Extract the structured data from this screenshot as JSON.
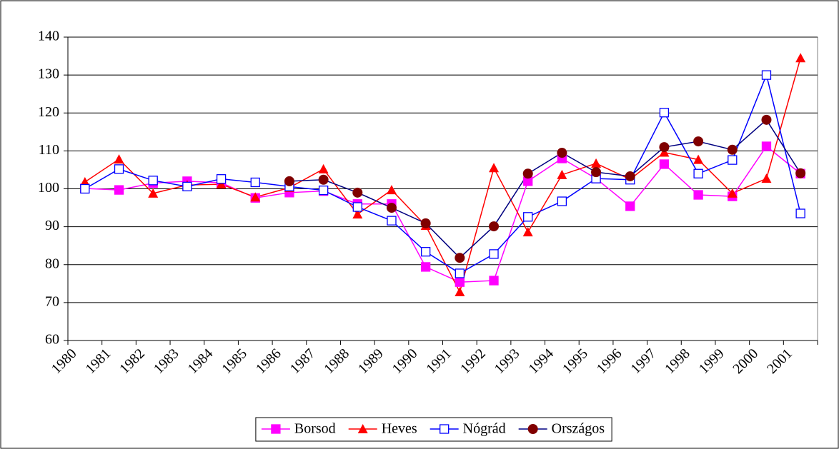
{
  "chart_data": {
    "type": "line",
    "categories": [
      "1980",
      "1981",
      "1982",
      "1983",
      "1984",
      "1985",
      "1986",
      "1987",
      "1988",
      "1989",
      "1990",
      "1991",
      "1992",
      "1993",
      "1994",
      "1995",
      "1996",
      "1997",
      "1998",
      "1999",
      "2000",
      "2001"
    ],
    "series": [
      {
        "name": "Borsod",
        "color": "#ff00ff",
        "marker": "square",
        "marker_color": "#ff00ff",
        "values": [
          100.1,
          99.7,
          101.5,
          102,
          101.6,
          97.6,
          99,
          99.4,
          96,
          96,
          79.4,
          75.4,
          75.8,
          102,
          108,
          102.7,
          95.4,
          106.5,
          98.4,
          98,
          111.2,
          104
        ]
      },
      {
        "name": "Heves",
        "color": "#ff0000",
        "marker": "triangle",
        "marker_color": "#ff0000",
        "values": [
          101.8,
          107.8,
          98.8,
          101,
          101.2,
          97.8,
          100.3,
          105.2,
          93.3,
          99.7,
          90.3,
          72.8,
          105.5,
          88.6,
          103.7,
          106.7,
          102.5,
          109.6,
          107.7,
          98.8,
          102.7,
          134.5
        ]
      },
      {
        "name": "Nógrád",
        "color": "#0000ff",
        "marker": "open-square",
        "marker_color": "#0000ff",
        "values": [
          100,
          105.2,
          102.2,
          100.6,
          102.6,
          101.7,
          100.6,
          99.6,
          95.2,
          91.6,
          83.4,
          77.7,
          82.8,
          92.6,
          96.7,
          102.7,
          102.4,
          120.1,
          104,
          107.6,
          130,
          93.5
        ]
      },
      {
        "name": "Országos",
        "color": "#000080",
        "marker": "circle",
        "marker_color": "#800000",
        "values": [
          null,
          null,
          null,
          null,
          null,
          null,
          102,
          102.4,
          99,
          95,
          90.9,
          81.8,
          90.1,
          104,
          109.5,
          104.4,
          103.3,
          111,
          112.5,
          110.3,
          118.2,
          104.1
        ]
      }
    ],
    "ylim": [
      60,
      140
    ],
    "yticks": [
      60,
      70,
      80,
      90,
      100,
      110,
      120,
      130,
      140
    ],
    "grid": true,
    "legend": "bottom"
  }
}
